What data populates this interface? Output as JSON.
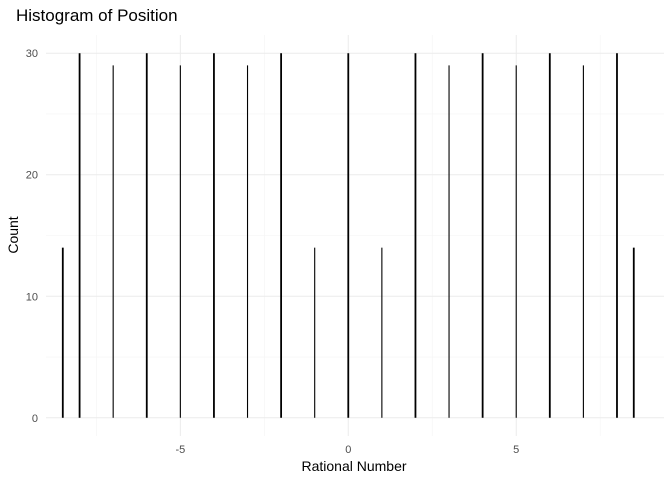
{
  "chart_data": {
    "type": "bar",
    "title": "Histogram of Position",
    "xlabel": "Rational Number",
    "ylabel": "Count",
    "xlim": [
      -9.0,
      9.4
    ],
    "ylim": [
      -1.5,
      31.5
    ],
    "x_ticks": [
      -5,
      0,
      5
    ],
    "y_ticks": [
      0,
      10,
      20,
      30
    ],
    "grid": true,
    "color": "#000000",
    "bars": [
      {
        "x": -8.5,
        "count": 14
      },
      {
        "x": -8.0,
        "count": 30
      },
      {
        "x": -7.0,
        "count": 29
      },
      {
        "x": -6.0,
        "count": 30
      },
      {
        "x": -5.0,
        "count": 29
      },
      {
        "x": -4.0,
        "count": 30
      },
      {
        "x": -3.0,
        "count": 29
      },
      {
        "x": -2.0,
        "count": 30
      },
      {
        "x": -1.0,
        "count": 14
      },
      {
        "x": 0.0,
        "count": 30
      },
      {
        "x": 1.0,
        "count": 14
      },
      {
        "x": 2.0,
        "count": 30
      },
      {
        "x": 3.0,
        "count": 29
      },
      {
        "x": 4.0,
        "count": 30
      },
      {
        "x": 5.0,
        "count": 29
      },
      {
        "x": 6.0,
        "count": 30
      },
      {
        "x": 7.0,
        "count": 29
      },
      {
        "x": 8.0,
        "count": 30
      },
      {
        "x": 8.5,
        "count": 14
      }
    ]
  }
}
